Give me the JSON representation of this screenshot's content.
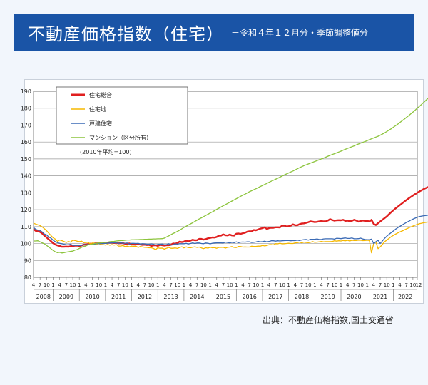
{
  "header": {
    "title": "不動産価格指数（住宅）",
    "subtitle": "－令和４年１２月分・季節調整値分"
  },
  "source": "出典：不動産価格指数,国土交通省",
  "colors": {
    "banner": "#1a54a6",
    "series": [
      "#e01f1f",
      "#f5b800",
      "#3a6ab5",
      "#8cc43c"
    ]
  },
  "chart_data": {
    "type": "line",
    "note": "(2010年平均=100)",
    "ylim": [
      80,
      190
    ],
    "yticks": [
      80,
      90,
      100,
      110,
      120,
      130,
      140,
      150,
      160,
      170,
      180,
      190
    ],
    "month_ticks": [
      "4",
      "7",
      "10",
      "1"
    ],
    "last_tick": "12",
    "years": [
      "2008",
      "2009",
      "2010",
      "2011",
      "2012",
      "2013",
      "2014",
      "2015",
      "2016",
      "2017",
      "2018",
      "2019",
      "2020",
      "2021",
      "2022"
    ],
    "x_start": "2008-04",
    "x_end": "2022-12",
    "grid": true,
    "legend": "top-left",
    "series": [
      {
        "name": "住宅総合",
        "color": "#e01f1f",
        "values": [
          108.5,
          107.5,
          107.3,
          106.8,
          105.9,
          104.6,
          103.6,
          102.4,
          101.4,
          100.2,
          99.4,
          98.9,
          98.6,
          98.1,
          98.1,
          98.2,
          98.1,
          98.4,
          98.5,
          98.7,
          98.8,
          98.6,
          98.8,
          99.3,
          99.4,
          99.7,
          99.9,
          99.9,
          100.0,
          100.1,
          100.1,
          100.2,
          100.3,
          100.3,
          100.5,
          100.5,
          100.5,
          100.3,
          100.4,
          100.1,
          100.2,
          100.2,
          99.9,
          99.9,
          100.0,
          99.5,
          99.4,
          99.4,
          99.6,
          99.4,
          99.2,
          99.3,
          99.1,
          99.2,
          98.6,
          98.9,
          99.0,
          98.6,
          99.2,
          99.0,
          98.8,
          99.0,
          99.0,
          99.2,
          100.0,
          99.9,
          100.3,
          101.1,
          100.8,
          101.1,
          101.7,
          101.3,
          101.7,
          102.2,
          101.9,
          102.0,
          102.7,
          102.7,
          102.3,
          102.6,
          103.1,
          103.3,
          103.6,
          103.5,
          103.9,
          104.6,
          104.7,
          105.4,
          104.9,
          104.8,
          105.3,
          104.8,
          104.7,
          105.8,
          105.9,
          105.7,
          106.1,
          106.4,
          107.0,
          107.2,
          107.2,
          108.0,
          107.8,
          108.3,
          108.8,
          109.1,
          109.6,
          108.6,
          109.1,
          109.3,
          109.3,
          109.6,
          109.6,
          109.5,
          110.6,
          110.6,
          110.1,
          110.2,
          110.6,
          111.3,
          110.8,
          110.8,
          111.4,
          111.8,
          111.9,
          112.2,
          112.6,
          113.1,
          112.9,
          112.6,
          112.8,
          113.1,
          113.3,
          113.1,
          113.1,
          113.6,
          114.4,
          113.9,
          113.5,
          113.7,
          113.8,
          113.7,
          114.0,
          113.4,
          113.5,
          113.2,
          113.4,
          114.0,
          113.6,
          112.9,
          113.3,
          113.6,
          113.4,
          113.4,
          113.0,
          114.0,
          111.6,
          110.9,
          112.0,
          113.0,
          114.0,
          115.0,
          116.0,
          117.3,
          118.5,
          119.6,
          120.7,
          121.7,
          122.7,
          123.7,
          124.7,
          125.7,
          126.6,
          127.5,
          128.4,
          129.2,
          130.0,
          130.8,
          131.5,
          132.2,
          132.8,
          133.4,
          134.0,
          134.5
        ]
      },
      {
        "name": "住宅地",
        "color": "#f5b800",
        "values": [
          112.0,
          111.5,
          111.0,
          110.6,
          109.8,
          108.7,
          107.6,
          106.1,
          104.7,
          103.4,
          102.6,
          101.3,
          102.1,
          101.7,
          101.2,
          100.6,
          101.2,
          100.8,
          102.0,
          101.8,
          101.4,
          101.1,
          101.4,
          100.5,
          100.6,
          100.7,
          99.8,
          100.3,
          100.1,
          99.6,
          99.9,
          99.3,
          99.4,
          99.1,
          99.5,
          99.0,
          99.4,
          99.1,
          99.4,
          98.5,
          98.5,
          98.8,
          98.2,
          98.4,
          98.1,
          98.5,
          98.3,
          98.4,
          97.7,
          98.3,
          98.0,
          97.8,
          97.7,
          97.5,
          97.5,
          97.1,
          96.4,
          97.5,
          97.2,
          97.3,
          96.7,
          97.2,
          97.7,
          97.2,
          97.2,
          97.4,
          97.1,
          97.7,
          98.1,
          97.4,
          98.0,
          97.6,
          97.5,
          97.8,
          98.1,
          97.7,
          97.9,
          97.4,
          97.0,
          97.5,
          97.3,
          97.8,
          97.5,
          97.6,
          97.2,
          97.7,
          97.7,
          97.8,
          97.3,
          97.8,
          97.9,
          98.2,
          97.7,
          97.6,
          98.3,
          98.2,
          97.9,
          98.0,
          97.9,
          97.9,
          98.4,
          98.3,
          98.3,
          98.5,
          98.4,
          98.9,
          98.6,
          98.8,
          99.3,
          99.4,
          99.2,
          99.9,
          99.8,
          100.2,
          99.8,
          99.9,
          100.0,
          100.2,
          100.0,
          100.0,
          100.4,
          100.5,
          100.8,
          100.4,
          100.8,
          100.6,
          100.5,
          100.7,
          101.1,
          100.7,
          100.8,
          101.0,
          101.2,
          101.0,
          101.1,
          101.1,
          101.1,
          101.2,
          101.6,
          101.4,
          101.6,
          101.5,
          101.8,
          101.6,
          101.9,
          101.5,
          101.9,
          101.8,
          101.8,
          102.0,
          101.9,
          101.7,
          101.8,
          101.9,
          101.8,
          94.5,
          100.0,
          101.0,
          97.0,
          98.0,
          99.5,
          101.0,
          102.0,
          103.0,
          104.0,
          104.8,
          105.5,
          106.2,
          106.8,
          107.4,
          108.0,
          108.6,
          109.2,
          109.8,
          110.3,
          110.8,
          111.3,
          111.7,
          112.0,
          112.3,
          112.5,
          112.7,
          112.9
        ]
      },
      {
        "name": "戸建住宅",
        "color": "#3a6ab5",
        "values": [
          109.5,
          108.4,
          107.9,
          107.7,
          106.8,
          105.6,
          105.1,
          103.8,
          103.2,
          101.9,
          101.1,
          100.5,
          100.1,
          99.9,
          99.5,
          99.3,
          99.2,
          99.6,
          98.9,
          98.9,
          98.9,
          98.8,
          98.9,
          99.4,
          99.0,
          99.5,
          99.3,
          99.6,
          99.6,
          100.0,
          99.9,
          100.1,
          100.0,
          100.1,
          100.2,
          100.4,
          100.4,
          100.4,
          100.4,
          100.0,
          100.5,
          100.1,
          100.2,
          100.3,
          99.7,
          100.1,
          100.1,
          100.0,
          100.1,
          99.7,
          99.9,
          99.8,
          99.6,
          99.6,
          99.8,
          99.6,
          99.1,
          99.5,
          99.5,
          99.7,
          99.3,
          99.4,
          99.9,
          99.0,
          99.3,
          99.8,
          99.6,
          99.9,
          99.9,
          99.9,
          100.1,
          99.7,
          100.0,
          100.4,
          100.0,
          100.3,
          100.3,
          100.0,
          99.9,
          100.3,
          100.2,
          99.8,
          100.2,
          100.3,
          100.4,
          100.4,
          100.4,
          100.3,
          100.8,
          100.6,
          100.4,
          100.7,
          100.5,
          101.0,
          100.5,
          100.8,
          100.9,
          100.8,
          101.0,
          101.0,
          100.6,
          100.7,
          100.9,
          101.3,
          101.0,
          101.1,
          101.4,
          101.0,
          101.2,
          101.6,
          101.6,
          101.4,
          101.6,
          101.5,
          101.6,
          101.7,
          101.8,
          101.8,
          101.6,
          101.8,
          101.7,
          102.0,
          101.8,
          102.1,
          102.3,
          102.4,
          102.0,
          102.5,
          102.5,
          102.5,
          102.7,
          102.4,
          102.4,
          102.7,
          102.8,
          102.8,
          102.8,
          102.8,
          102.6,
          103.1,
          103.0,
          102.9,
          103.1,
          103.3,
          103.0,
          103.0,
          103.3,
          102.8,
          102.8,
          102.9,
          103.2,
          102.7,
          102.4,
          102.3,
          102.3,
          102.6,
          100.0,
          101.0,
          102.0,
          100.0,
          101.5,
          103.0,
          104.3,
          105.4,
          106.4,
          107.4,
          108.4,
          109.3,
          110.1,
          110.9,
          111.7,
          112.4,
          113.1,
          113.8,
          114.4,
          115.0,
          115.5,
          115.9,
          116.2,
          116.4,
          116.6,
          116.8,
          116.9,
          117.0
        ]
      },
      {
        "name": "マンション（区分所有）",
        "color": "#8cc43c",
        "values": [
          101.5,
          101.5,
          101.6,
          101.0,
          100.4,
          99.8,
          98.9,
          97.9,
          96.9,
          95.9,
          95.1,
          94.6,
          94.8,
          94.4,
          94.6,
          94.9,
          95.1,
          95.4,
          95.5,
          96.1,
          96.4,
          97.1,
          97.7,
          98.3,
          98.5,
          99.3,
          99.4,
          99.6,
          99.9,
          100.2,
          100.3,
          100.4,
          100.6,
          100.6,
          100.8,
          101.1,
          101.2,
          101.3,
          101.5,
          101.6,
          101.8,
          101.8,
          101.9,
          102.1,
          102.1,
          102.2,
          102.2,
          102.3,
          102.3,
          102.4,
          102.4,
          102.5,
          102.5,
          102.6,
          102.6,
          102.7,
          102.7,
          102.8,
          102.8,
          102.9,
          103.2,
          103.9,
          104.5,
          105.2,
          105.9,
          106.5,
          107.2,
          107.9,
          108.7,
          109.5,
          110.2,
          110.9,
          111.6,
          112.3,
          113.1,
          113.8,
          114.5,
          115.2,
          115.9,
          116.6,
          117.3,
          118.0,
          118.7,
          119.4,
          120.2,
          120.9,
          121.6,
          122.3,
          123.0,
          123.7,
          124.4,
          125.1,
          125.8,
          126.5,
          127.2,
          127.9,
          128.6,
          129.2,
          129.9,
          130.6,
          131.2,
          131.8,
          132.4,
          133.0,
          133.7,
          134.3,
          134.9,
          135.5,
          136.2,
          136.8,
          137.4,
          138.0,
          138.6,
          139.2,
          139.9,
          140.5,
          141.1,
          141.7,
          142.3,
          142.9,
          143.5,
          144.2,
          144.8,
          145.4,
          146.0,
          146.5,
          147.0,
          147.5,
          148.0,
          148.5,
          149.0,
          149.5,
          150.0,
          150.5,
          151.0,
          151.6,
          152.1,
          152.6,
          153.1,
          153.6,
          154.1,
          154.6,
          155.2,
          155.7,
          156.2,
          156.7,
          157.2,
          157.7,
          158.3,
          158.8,
          159.3,
          159.8,
          160.3,
          160.8,
          161.4,
          161.9,
          162.4,
          162.9,
          163.4,
          164.0,
          164.7,
          165.4,
          166.2,
          167.0,
          167.8,
          168.7,
          169.6,
          170.5,
          171.5,
          172.5,
          173.5,
          174.5,
          175.5,
          176.6,
          177.7,
          178.8,
          180.0,
          181.1,
          182.3,
          183.5,
          184.7,
          185.9,
          187.0
        ]
      }
    ]
  }
}
